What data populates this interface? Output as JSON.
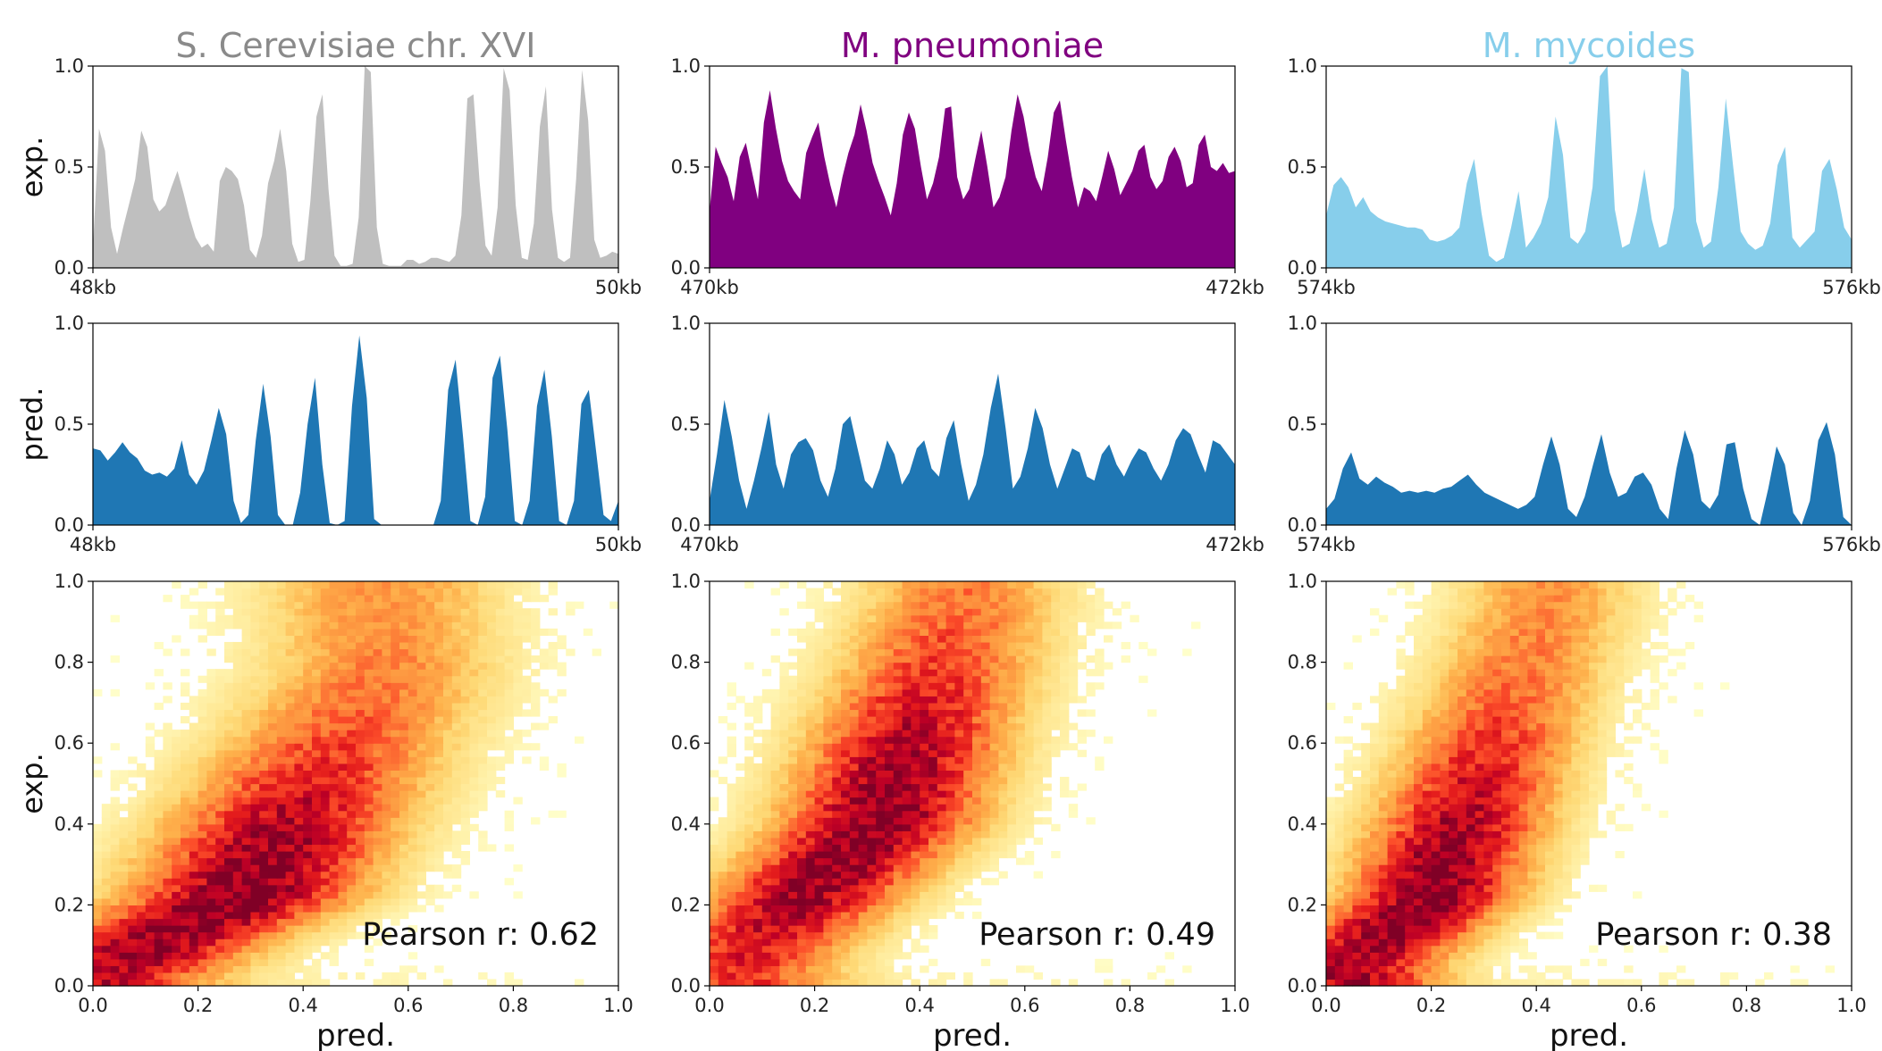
{
  "chart_data": [
    {
      "type": "area",
      "row": "experimental",
      "title": "S. Cerevisiae chr. XVI",
      "ylabel": "exp.",
      "ylim": [
        0,
        1
      ],
      "yticks": [
        "0.0",
        "0.5",
        "1.0"
      ],
      "xtick_labels": [
        "48kb",
        "50kb"
      ],
      "colors": {
        "fill": "#bfbfbf",
        "title": "#8a8a8a"
      },
      "series": [
        {
          "values": [
            0.1,
            0.69,
            0.58,
            0.2,
            0.07,
            0.2,
            0.32,
            0.44,
            0.68,
            0.6,
            0.34,
            0.28,
            0.31,
            0.4,
            0.48,
            0.37,
            0.25,
            0.15,
            0.1,
            0.12,
            0.08,
            0.43,
            0.5,
            0.48,
            0.44,
            0.31,
            0.09,
            0.05,
            0.16,
            0.42,
            0.53,
            0.69,
            0.48,
            0.12,
            0.03,
            0.04,
            0.33,
            0.75,
            0.86,
            0.39,
            0.06,
            0.01,
            0.01,
            0.02,
            0.25,
            1.0,
            0.97,
            0.2,
            0.02,
            0.01,
            0.01,
            0.01,
            0.04,
            0.04,
            0.02,
            0.03,
            0.05,
            0.05,
            0.04,
            0.03,
            0.06,
            0.26,
            0.84,
            0.86,
            0.43,
            0.11,
            0.06,
            0.3,
            0.99,
            0.88,
            0.31,
            0.05,
            0.04,
            0.22,
            0.7,
            0.9,
            0.29,
            0.05,
            0.03,
            0.05,
            0.44,
            0.98,
            0.73,
            0.14,
            0.05,
            0.06,
            0.08,
            0.07
          ]
        }
      ]
    },
    {
      "type": "area",
      "row": "experimental",
      "title": "M. pneumoniae",
      "ylim": [
        0,
        1
      ],
      "yticks": [
        "0.0",
        "0.5",
        "1.0"
      ],
      "xtick_labels": [
        "470kb",
        "472kb"
      ],
      "colors": {
        "fill": "#800080",
        "title": "#800080"
      },
      "series": [
        {
          "values": [
            0.28,
            0.6,
            0.52,
            0.45,
            0.33,
            0.55,
            0.62,
            0.48,
            0.34,
            0.72,
            0.88,
            0.69,
            0.53,
            0.43,
            0.38,
            0.34,
            0.57,
            0.65,
            0.72,
            0.55,
            0.41,
            0.3,
            0.45,
            0.57,
            0.66,
            0.81,
            0.68,
            0.52,
            0.43,
            0.35,
            0.26,
            0.42,
            0.66,
            0.77,
            0.69,
            0.5,
            0.34,
            0.42,
            0.55,
            0.79,
            0.8,
            0.45,
            0.34,
            0.39,
            0.54,
            0.68,
            0.5,
            0.3,
            0.35,
            0.45,
            0.68,
            0.86,
            0.75,
            0.58,
            0.45,
            0.38,
            0.55,
            0.77,
            0.83,
            0.63,
            0.45,
            0.3,
            0.4,
            0.38,
            0.33,
            0.45,
            0.58,
            0.49,
            0.36,
            0.42,
            0.48,
            0.58,
            0.61,
            0.45,
            0.39,
            0.43,
            0.55,
            0.6,
            0.53,
            0.4,
            0.42,
            0.61,
            0.66,
            0.5,
            0.48,
            0.52,
            0.47,
            0.48
          ]
        }
      ]
    },
    {
      "type": "area",
      "row": "experimental",
      "title": "M. mycoides",
      "ylim": [
        0,
        1
      ],
      "yticks": [
        "0.0",
        "0.5",
        "1.0"
      ],
      "xtick_labels": [
        "574kb",
        "576kb"
      ],
      "colors": {
        "fill": "#87ceeb",
        "title": "#87ceeb"
      },
      "series": [
        {
          "values": [
            0.26,
            0.41,
            0.45,
            0.4,
            0.3,
            0.35,
            0.28,
            0.25,
            0.23,
            0.22,
            0.21,
            0.2,
            0.2,
            0.19,
            0.14,
            0.13,
            0.14,
            0.16,
            0.2,
            0.42,
            0.54,
            0.27,
            0.06,
            0.03,
            0.05,
            0.2,
            0.38,
            0.1,
            0.15,
            0.22,
            0.35,
            0.75,
            0.56,
            0.15,
            0.12,
            0.18,
            0.4,
            0.95,
            1.0,
            0.29,
            0.1,
            0.12,
            0.28,
            0.49,
            0.24,
            0.1,
            0.12,
            0.3,
            0.99,
            0.97,
            0.23,
            0.1,
            0.13,
            0.4,
            0.84,
            0.5,
            0.18,
            0.12,
            0.09,
            0.11,
            0.22,
            0.51,
            0.6,
            0.15,
            0.1,
            0.14,
            0.18,
            0.48,
            0.54,
            0.39,
            0.2,
            0.14
          ]
        }
      ]
    },
    {
      "type": "area",
      "row": "predicted",
      "ylabel": "pred.",
      "ylim": [
        0,
        1
      ],
      "yticks": [
        "0.0",
        "0.5",
        "1.0"
      ],
      "xtick_labels": [
        "48kb",
        "50kb"
      ],
      "colors": {
        "fill": "#1f77b4"
      },
      "series": [
        {
          "values": [
            0.38,
            0.37,
            0.32,
            0.36,
            0.41,
            0.36,
            0.33,
            0.27,
            0.25,
            0.26,
            0.24,
            0.28,
            0.42,
            0.25,
            0.2,
            0.27,
            0.42,
            0.58,
            0.45,
            0.12,
            0.01,
            0.05,
            0.42,
            0.7,
            0.44,
            0.05,
            0.0,
            0.0,
            0.16,
            0.5,
            0.73,
            0.3,
            0.01,
            0.0,
            0.02,
            0.59,
            0.94,
            0.63,
            0.03,
            0.0,
            0.0,
            0.0,
            0.0,
            0.0,
            0.0,
            0.0,
            0.0,
            0.12,
            0.67,
            0.82,
            0.44,
            0.02,
            0.0,
            0.14,
            0.73,
            0.84,
            0.47,
            0.02,
            0.0,
            0.12,
            0.59,
            0.77,
            0.44,
            0.02,
            0.0,
            0.12,
            0.6,
            0.67,
            0.36,
            0.05,
            0.02,
            0.12
          ]
        }
      ]
    },
    {
      "type": "area",
      "row": "predicted",
      "ylim": [
        0,
        1
      ],
      "yticks": [
        "0.0",
        "0.5",
        "1.0"
      ],
      "xtick_labels": [
        "470kb",
        "472kb"
      ],
      "colors": {
        "fill": "#1f77b4"
      },
      "series": [
        {
          "values": [
            0.12,
            0.35,
            0.62,
            0.44,
            0.22,
            0.08,
            0.22,
            0.38,
            0.56,
            0.3,
            0.18,
            0.35,
            0.41,
            0.43,
            0.37,
            0.22,
            0.14,
            0.28,
            0.5,
            0.54,
            0.38,
            0.22,
            0.18,
            0.28,
            0.42,
            0.35,
            0.2,
            0.26,
            0.38,
            0.42,
            0.28,
            0.24,
            0.43,
            0.52,
            0.3,
            0.12,
            0.2,
            0.35,
            0.58,
            0.75,
            0.48,
            0.18,
            0.24,
            0.38,
            0.58,
            0.48,
            0.3,
            0.18,
            0.28,
            0.38,
            0.36,
            0.24,
            0.22,
            0.35,
            0.4,
            0.3,
            0.24,
            0.32,
            0.38,
            0.36,
            0.28,
            0.22,
            0.3,
            0.42,
            0.48,
            0.45,
            0.35,
            0.26,
            0.42,
            0.4,
            0.35,
            0.3
          ]
        }
      ]
    },
    {
      "type": "area",
      "row": "predicted",
      "ylim": [
        0,
        1
      ],
      "yticks": [
        "0.0",
        "0.5",
        "1.0"
      ],
      "xtick_labels": [
        "574kb",
        "576kb"
      ],
      "colors": {
        "fill": "#1f77b4"
      },
      "series": [
        {
          "values": [
            0.08,
            0.13,
            0.28,
            0.36,
            0.23,
            0.2,
            0.24,
            0.21,
            0.19,
            0.16,
            0.17,
            0.16,
            0.17,
            0.16,
            0.18,
            0.19,
            0.22,
            0.25,
            0.2,
            0.16,
            0.14,
            0.12,
            0.1,
            0.08,
            0.1,
            0.14,
            0.3,
            0.44,
            0.3,
            0.08,
            0.04,
            0.14,
            0.3,
            0.45,
            0.26,
            0.14,
            0.16,
            0.24,
            0.26,
            0.2,
            0.08,
            0.03,
            0.28,
            0.47,
            0.35,
            0.12,
            0.08,
            0.15,
            0.4,
            0.41,
            0.18,
            0.03,
            0.0,
            0.18,
            0.39,
            0.3,
            0.06,
            0.0,
            0.12,
            0.42,
            0.51,
            0.35,
            0.04,
            0.0
          ]
        }
      ]
    },
    {
      "type": "heatmap",
      "row": "scatter",
      "xlabel": "pred.",
      "ylabel": "exp.",
      "xlim": [
        0,
        1
      ],
      "ylim": [
        0,
        1
      ],
      "xticks": [
        "0.0",
        "0.2",
        "0.4",
        "0.6",
        "0.8",
        "1.0"
      ],
      "yticks": [
        "0.0",
        "0.2",
        "0.4",
        "0.6",
        "0.8",
        "1.0"
      ],
      "annotation": "Pearson r: 0.62",
      "colormap": "YlOrRd",
      "density": {
        "ridge": [
          [
            0.0,
            0.02
          ],
          [
            0.28,
            0.22
          ],
          [
            0.55,
            0.78
          ]
        ],
        "spread_x": 0.2,
        "spread_y": 0.12,
        "corr": 0.62
      }
    },
    {
      "type": "heatmap",
      "row": "scatter",
      "xlabel": "pred.",
      "xlim": [
        0,
        1
      ],
      "ylim": [
        0,
        1
      ],
      "xticks": [
        "0.0",
        "0.2",
        "0.4",
        "0.6",
        "0.8",
        "1.0"
      ],
      "yticks": [
        "0.0",
        "0.2",
        "0.4",
        "0.6",
        "0.8",
        "1.0"
      ],
      "annotation": "Pearson r: 0.49",
      "colormap": "YlOrRd",
      "density": {
        "ridge": [
          [
            0.05,
            0.05
          ],
          [
            0.32,
            0.4
          ],
          [
            0.48,
            0.95
          ]
        ],
        "spread_x": 0.17,
        "spread_y": 0.16,
        "corr": 0.49
      }
    },
    {
      "type": "heatmap",
      "row": "scatter",
      "xlabel": "pred.",
      "xlim": [
        0,
        1
      ],
      "ylim": [
        0,
        1
      ],
      "xticks": [
        "0.0",
        "0.2",
        "0.4",
        "0.6",
        "0.8",
        "1.0"
      ],
      "yticks": [
        "0.0",
        "0.2",
        "0.4",
        "0.6",
        "0.8",
        "1.0"
      ],
      "annotation": "Pearson r: 0.38",
      "colormap": "YlOrRd",
      "density": {
        "ridge": [
          [
            0.05,
            0.05
          ],
          [
            0.2,
            0.22
          ],
          [
            0.42,
            0.95
          ]
        ],
        "spread_x": 0.15,
        "spread_y": 0.16,
        "corr": 0.38
      }
    }
  ]
}
